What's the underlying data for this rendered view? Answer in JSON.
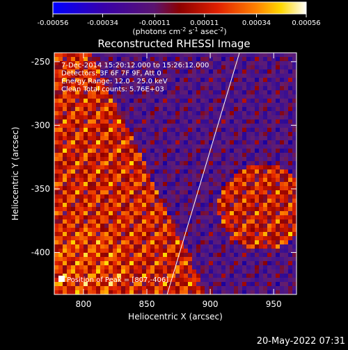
{
  "chart_data": {
    "type": "heatmap",
    "title": "Reconstructed RHESSI Image",
    "xlabel": "Heliocentric X (arcsec)",
    "ylabel": "Heliocentric Y (arcsec)",
    "xlim": [
      777,
      968
    ],
    "ylim": [
      -433,
      -243
    ],
    "x_ticks": [
      800,
      850,
      900,
      950
    ],
    "x_tick_labels": [
      "800",
      "850",
      "900",
      "950"
    ],
    "y_ticks": [
      -250,
      -300,
      -350,
      -400
    ],
    "y_tick_labels": [
      "-250",
      "-300",
      "-350",
      "-400"
    ],
    "colorbar": {
      "ticks": [
        -0.00056,
        -0.00034,
        -0.00011,
        0.00011,
        0.00034,
        0.00056
      ],
      "tick_labels": [
        "-0.00056",
        "-0.00034",
        "-0.00011",
        "0.00011",
        "0.00034",
        "0.00056"
      ],
      "range": [
        -0.00056,
        0.00056
      ],
      "colors": [
        "#0000ff",
        "#3800aa",
        "#5a1470",
        "#8c0000",
        "#e02000",
        "#ff8000",
        "#ffd800",
        "#ffffff"
      ]
    },
    "annotations": [
      "7-Dec-2014 15:20:12.000 to 15:26:12.000",
      "Detectors: 3F 6F 7F 9F, Att 0",
      "Energy Range: 12.0 - 25.0 keV",
      "Clean    Total counts: 5.76E+03"
    ],
    "peak_label": "Position of Peak = [807,-406]",
    "peak": [
      807,
      -406
    ],
    "limb_line": [
      [
        866,
        -433
      ],
      [
        923,
        -243
      ]
    ]
  },
  "footer": {
    "timestamp": "20-May-2022 07:31"
  }
}
